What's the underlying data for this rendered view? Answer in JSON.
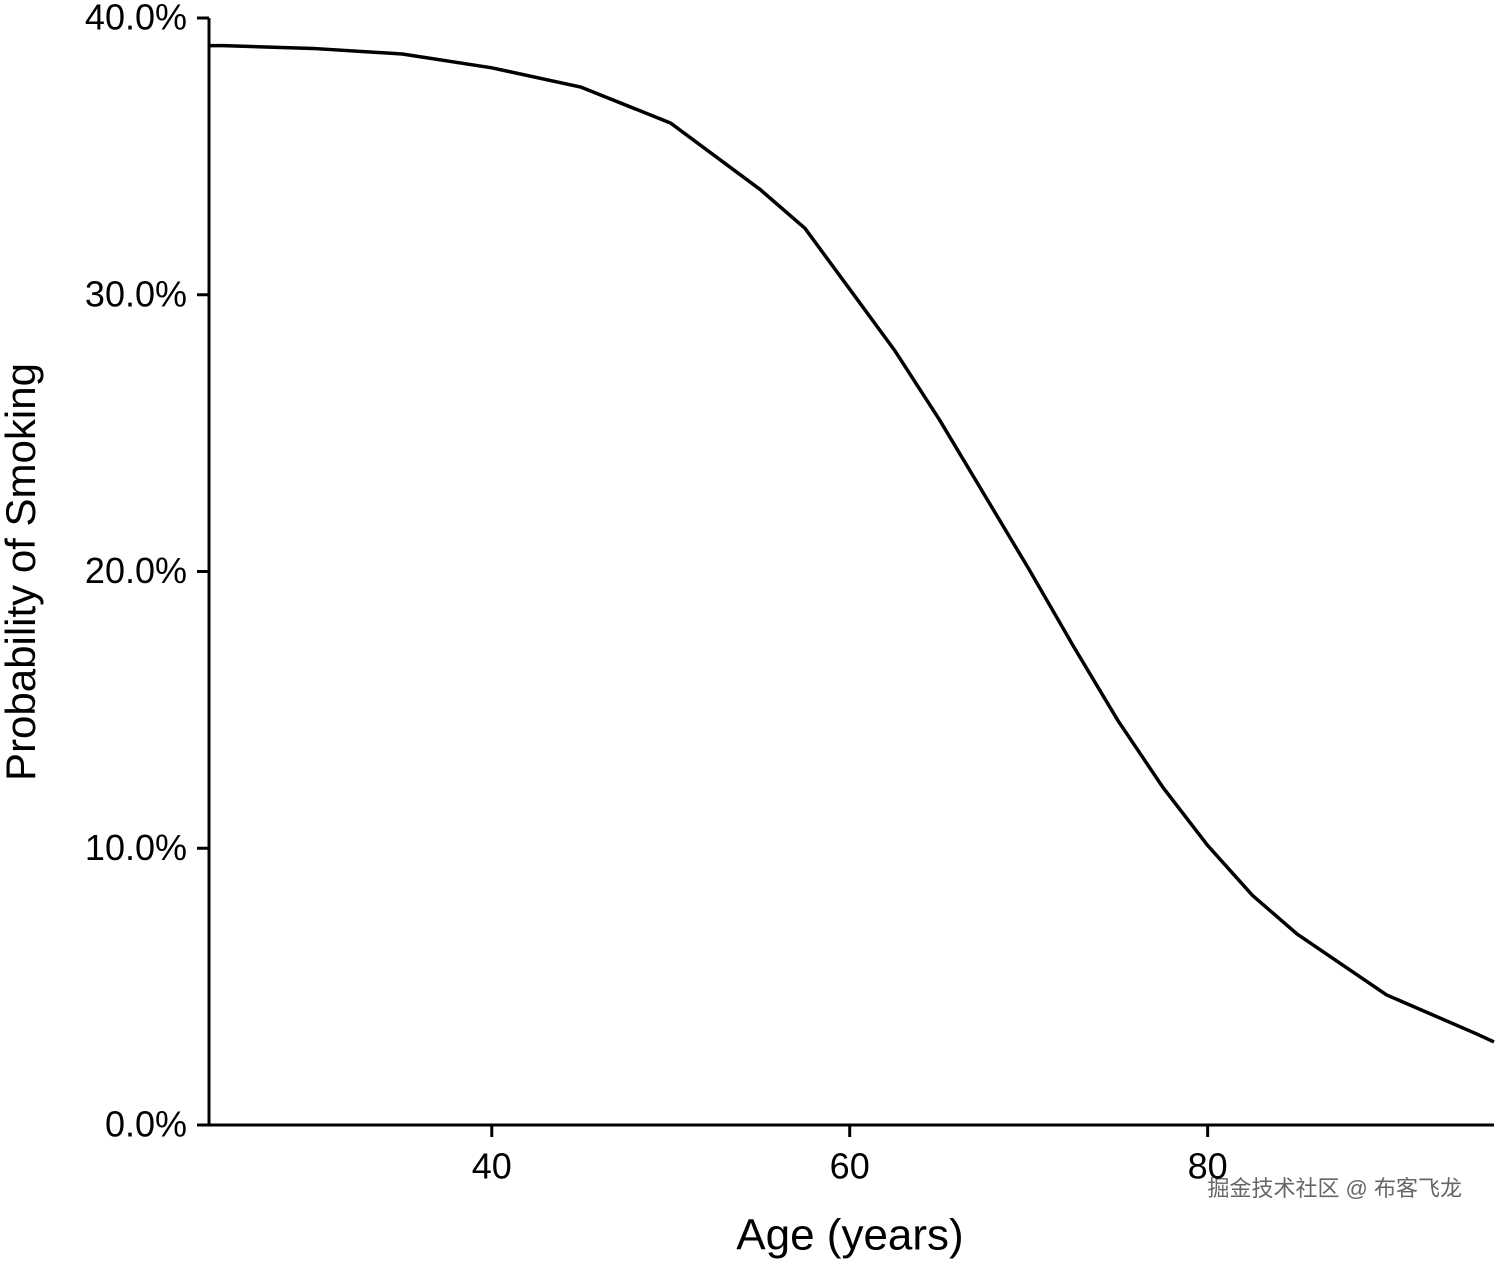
{
  "chart_data": {
    "type": "line",
    "x_label": "Age (years)",
    "y_label": "Probability of Smoking",
    "x": [
      24.2,
      25,
      30,
      35,
      40,
      45,
      50,
      55,
      57.5,
      60,
      62.5,
      65,
      67.5,
      70,
      72.5,
      75,
      77.5,
      80,
      82.5,
      85,
      90,
      95,
      96
    ],
    "series": [
      {
        "color": "#000000",
        "values": [
          39.0,
          39.0,
          38.9,
          38.7,
          38.2,
          37.5,
          36.2,
          33.8,
          32.4,
          30.2,
          28.0,
          25.5,
          22.8,
          20.1,
          17.3,
          14.6,
          12.2,
          10.1,
          8.3,
          6.9,
          4.7,
          3.3,
          3.0
        ]
      }
    ],
    "xlim": [
      24.2,
      96
    ],
    "ylim": [
      0,
      40
    ],
    "xticks": [
      40,
      60,
      80
    ],
    "yticks": [
      {
        "value": 0,
        "label": "0.0%"
      },
      {
        "value": 10,
        "label": "10.0%"
      },
      {
        "value": 20,
        "label": "20.0%"
      },
      {
        "value": 30,
        "label": "30.0%"
      },
      {
        "value": 40,
        "label": "40.0%"
      }
    ],
    "grid": false,
    "watermark": "掘金技术社区 @ 布客飞龙"
  }
}
